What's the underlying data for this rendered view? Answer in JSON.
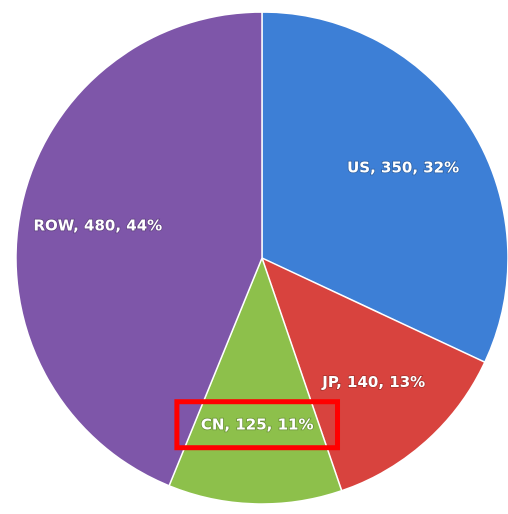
{
  "chart_data": {
    "type": "pie",
    "categories": [
      "US",
      "JP",
      "CN",
      "ROW"
    ],
    "values": [
      350,
      140,
      125,
      480
    ],
    "value_labels": [
      "US, 350, 32%",
      "JP, 140, 13%",
      "CN, 125, 11%",
      "ROW, 480, 44%"
    ],
    "colors": [
      "#3d7fd6",
      "#d8433e",
      "#8dc04b",
      "#7e56a9"
    ]
  }
}
